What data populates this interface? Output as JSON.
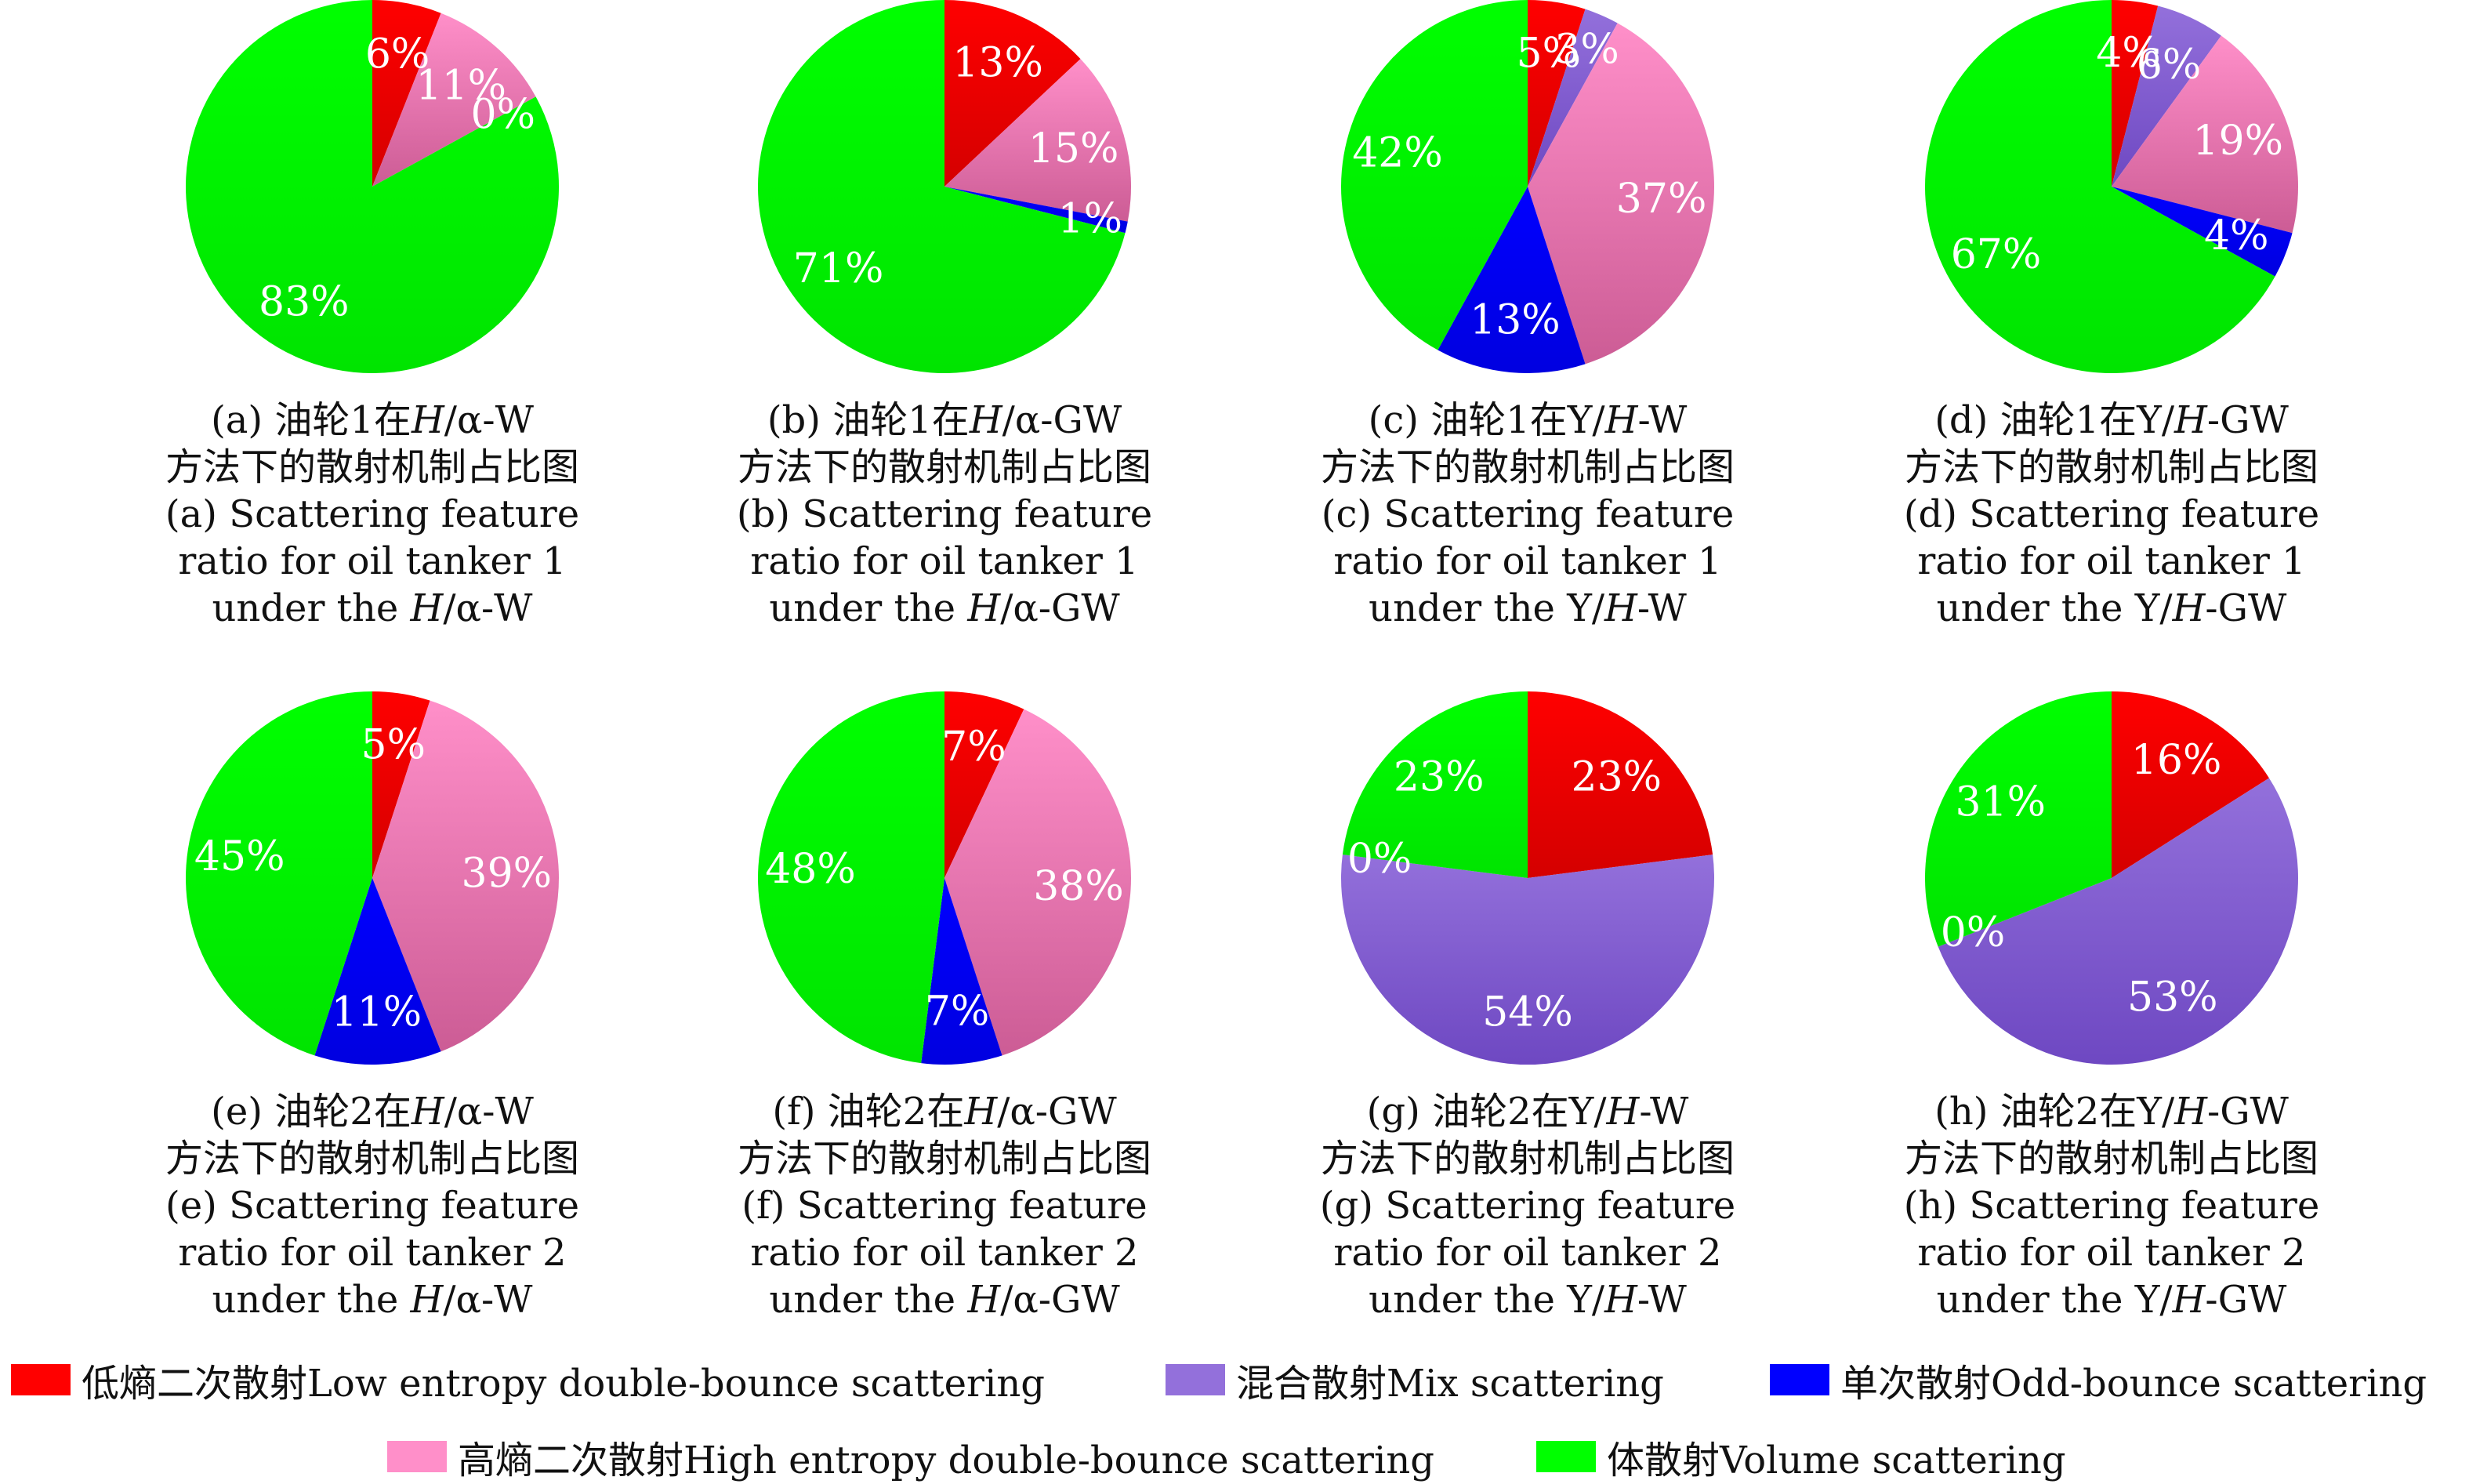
{
  "categories_legend": [
    {
      "id": "low",
      "label": "低熵二次散射Low entropy double-bounce scattering",
      "color": "#ff0000"
    },
    {
      "id": "mix",
      "label": "混合散射Mix scattering",
      "color": "#9370db"
    },
    {
      "id": "odd",
      "label": "单次散射Odd-bounce scattering",
      "color": "#0000ff"
    },
    {
      "id": "high",
      "label": "高熵二次散射High entropy double-bounce scattering",
      "color": "#ff8fc9"
    },
    {
      "id": "vol",
      "label": "体散射Volume scattering",
      "color": "#00ff00"
    }
  ],
  "chart_data": [
    {
      "type": "pie",
      "panel": "a",
      "slices": [
        {
          "category": "low",
          "value": 6,
          "label": "6%"
        },
        {
          "category": "mix",
          "value": 0,
          "label": ""
        },
        {
          "category": "high",
          "value": 11,
          "label": "11%"
        },
        {
          "category": "odd",
          "value": 0,
          "label": "0%"
        },
        {
          "category": "vol",
          "value": 83,
          "label": "83%"
        }
      ],
      "caption": {
        "cn1_pre": "(a) 油轮1在",
        "cn1_em": "H",
        "cn1_post": "/α-W",
        "cn2": "方法下的散射机制占比图",
        "en1": "(a) Scattering feature",
        "en2": "ratio for oil tanker 1",
        "en3_pre": "under the ",
        "en3_em": "H",
        "en3_post": "/α-W"
      }
    },
    {
      "type": "pie",
      "panel": "b",
      "slices": [
        {
          "category": "low",
          "value": 13,
          "label": "13%"
        },
        {
          "category": "mix",
          "value": 0,
          "label": ""
        },
        {
          "category": "high",
          "value": 15,
          "label": "15%"
        },
        {
          "category": "odd",
          "value": 1,
          "label": "1%"
        },
        {
          "category": "vol",
          "value": 71,
          "label": "71%"
        }
      ],
      "caption": {
        "cn1_pre": "(b) 油轮1在",
        "cn1_em": "H",
        "cn1_post": "/α-GW",
        "cn2": "方法下的散射机制占比图",
        "en1": "(b) Scattering feature",
        "en2": "ratio for oil tanker 1",
        "en3_pre": "under the ",
        "en3_em": "H",
        "en3_post": "/α-GW"
      }
    },
    {
      "type": "pie",
      "panel": "c",
      "slices": [
        {
          "category": "low",
          "value": 5,
          "label": "5%"
        },
        {
          "category": "mix",
          "value": 3,
          "label": "3%"
        },
        {
          "category": "high",
          "value": 37,
          "label": "37%"
        },
        {
          "category": "odd",
          "value": 13,
          "label": "13%"
        },
        {
          "category": "vol",
          "value": 42,
          "label": "42%"
        }
      ],
      "caption": {
        "cn1_pre": "(c) 油轮1在Y/",
        "cn1_em": "H",
        "cn1_post": "-W",
        "cn2": "方法下的散射机制占比图",
        "en1": "(c) Scattering feature",
        "en2": "ratio for oil tanker 1",
        "en3_pre": "under the Y/",
        "en3_em": "H",
        "en3_post": "-W"
      }
    },
    {
      "type": "pie",
      "panel": "d",
      "slices": [
        {
          "category": "low",
          "value": 4,
          "label": "4%"
        },
        {
          "category": "mix",
          "value": 6,
          "label": "6%"
        },
        {
          "category": "high",
          "value": 19,
          "label": "19%"
        },
        {
          "category": "odd",
          "value": 4,
          "label": "4%"
        },
        {
          "category": "vol",
          "value": 67,
          "label": "67%"
        }
      ],
      "caption": {
        "cn1_pre": "(d) 油轮1在Y/",
        "cn1_em": "H",
        "cn1_post": "-GW",
        "cn2": "方法下的散射机制占比图",
        "en1": "(d) Scattering feature",
        "en2": "ratio for oil tanker 1",
        "en3_pre": "under the Y/",
        "en3_em": "H",
        "en3_post": "-GW"
      }
    },
    {
      "type": "pie",
      "panel": "e",
      "slices": [
        {
          "category": "low",
          "value": 5,
          "label": "5%"
        },
        {
          "category": "mix",
          "value": 0,
          "label": ""
        },
        {
          "category": "high",
          "value": 39,
          "label": "39%"
        },
        {
          "category": "odd",
          "value": 11,
          "label": "11%"
        },
        {
          "category": "vol",
          "value": 45,
          "label": "45%"
        }
      ],
      "caption": {
        "cn1_pre": "(e) 油轮2在",
        "cn1_em": "H",
        "cn1_post": "/α-W",
        "cn2": "方法下的散射机制占比图",
        "en1": "(e) Scattering feature",
        "en2": "ratio for oil tanker 2",
        "en3_pre": "under the ",
        "en3_em": "H",
        "en3_post": "/α-W"
      }
    },
    {
      "type": "pie",
      "panel": "f",
      "slices": [
        {
          "category": "low",
          "value": 7,
          "label": "7%"
        },
        {
          "category": "mix",
          "value": 0,
          "label": ""
        },
        {
          "category": "high",
          "value": 38,
          "label": "38%"
        },
        {
          "category": "odd",
          "value": 7,
          "label": "7%"
        },
        {
          "category": "vol",
          "value": 48,
          "label": "48%"
        }
      ],
      "caption": {
        "cn1_pre": "(f) 油轮2在",
        "cn1_em": "H",
        "cn1_post": "/α-GW",
        "cn2": "方法下的散射机制占比图",
        "en1": "(f) Scattering feature",
        "en2": "ratio for oil tanker 2",
        "en3_pre": "under the ",
        "en3_em": "H",
        "en3_post": "/α-GW"
      }
    },
    {
      "type": "pie",
      "panel": "g",
      "slices": [
        {
          "category": "low",
          "value": 23,
          "label": "23%"
        },
        {
          "category": "mix",
          "value": 54,
          "label": "54%"
        },
        {
          "category": "high",
          "value": 0,
          "label": "0%"
        },
        {
          "category": "odd",
          "value": 0,
          "label": ""
        },
        {
          "category": "vol",
          "value": 23,
          "label": "23%"
        }
      ],
      "caption": {
        "cn1_pre": "(g) 油轮2在Y/",
        "cn1_em": "H",
        "cn1_post": "-W",
        "cn2": "方法下的散射机制占比图",
        "en1": "(g) Scattering feature",
        "en2": "ratio for oil tanker 2",
        "en3_pre": "under the Y/",
        "en3_em": "H",
        "en3_post": "-W"
      }
    },
    {
      "type": "pie",
      "panel": "h",
      "slices": [
        {
          "category": "low",
          "value": 16,
          "label": "16%"
        },
        {
          "category": "mix",
          "value": 53,
          "label": "53%"
        },
        {
          "category": "high",
          "value": 0,
          "label": "0%"
        },
        {
          "category": "odd",
          "value": 0,
          "label": ""
        },
        {
          "category": "vol",
          "value": 31,
          "label": "31%"
        }
      ],
      "caption": {
        "cn1_pre": "(h) 油轮2在Y/",
        "cn1_em": "H",
        "cn1_post": "-GW",
        "cn2": "方法下的散射机制占比图",
        "en1": "(h) Scattering feature",
        "en2": "ratio for oil tanker 2",
        "en3_pre": "under the Y/",
        "en3_em": "H",
        "en3_post": "-GW"
      }
    }
  ]
}
